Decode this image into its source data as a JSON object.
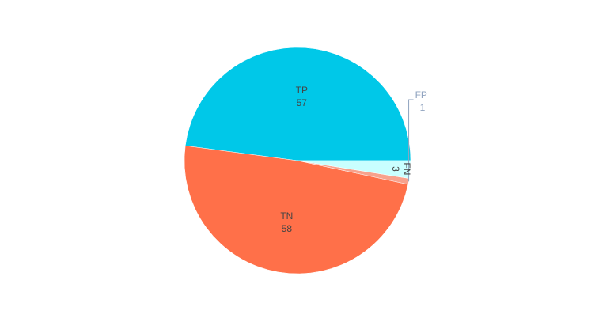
{
  "chart_data": {
    "type": "pie",
    "slices": [
      {
        "label": "TP",
        "value": 57,
        "value_text": "57",
        "color": "#00c8e8"
      },
      {
        "label": "TN",
        "value": 58,
        "value_text": "58",
        "color": "#ff7049"
      },
      {
        "label": "FP",
        "value": 1,
        "value_text": "1",
        "color": "#f7a28d"
      },
      {
        "label": "FN",
        "value": 3,
        "value_text": "3",
        "color": "#c9ffff"
      }
    ],
    "start_angle_deg": 0,
    "direction": "counterclockwise",
    "legend": "none"
  }
}
